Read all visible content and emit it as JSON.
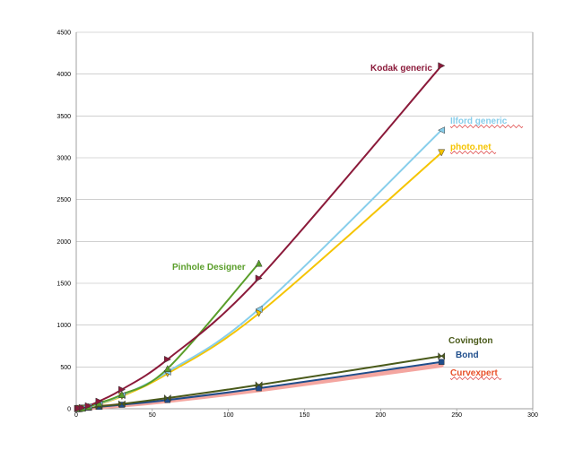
{
  "chart_data": {
    "type": "line",
    "title": "",
    "xlabel": "",
    "ylabel": "",
    "xlim": [
      0,
      300
    ],
    "ylim": [
      0,
      4500
    ],
    "x_ticks": [
      0,
      50,
      100,
      150,
      200,
      250,
      300
    ],
    "y_ticks": [
      0,
      500,
      1000,
      1500,
      2000,
      2500,
      3000,
      3500,
      4000,
      4500
    ],
    "grid": "horizontal",
    "legend": "inline labels",
    "series": [
      {
        "name": "Kodak generic",
        "color": "#8b1a3a",
        "marker": "triangle-right",
        "label_spell_marked": false,
        "points": [
          [
            1,
            2
          ],
          [
            2,
            6
          ],
          [
            4,
            14
          ],
          [
            8,
            35
          ],
          [
            15,
            90
          ],
          [
            30,
            230
          ],
          [
            60,
            590
          ],
          [
            120,
            1560
          ],
          [
            240,
            4100
          ]
        ]
      },
      {
        "name": "Ilford generic",
        "color": "#87ceeb",
        "marker": "triangle-left",
        "label_spell_marked": true,
        "points": [
          [
            1,
            1
          ],
          [
            2,
            3
          ],
          [
            4,
            8
          ],
          [
            8,
            20
          ],
          [
            15,
            60
          ],
          [
            30,
            160
          ],
          [
            60,
            440
          ],
          [
            120,
            1190
          ],
          [
            240,
            3330
          ]
        ]
      },
      {
        "name": "photo.net",
        "color": "#f5c400",
        "marker": "triangle-down",
        "label_spell_marked": true,
        "points": [
          [
            1,
            1
          ],
          [
            2,
            3
          ],
          [
            4,
            7
          ],
          [
            8,
            18
          ],
          [
            15,
            55
          ],
          [
            30,
            150
          ],
          [
            60,
            420
          ],
          [
            120,
            1140
          ],
          [
            240,
            3060
          ]
        ]
      },
      {
        "name": "Pinhole Designer",
        "color": "#5a9e2a",
        "marker": "triangle-up",
        "label_spell_marked": false,
        "points": [
          [
            1,
            1
          ],
          [
            2,
            3
          ],
          [
            4,
            8
          ],
          [
            8,
            25
          ],
          [
            15,
            70
          ],
          [
            30,
            170
          ],
          [
            60,
            480
          ],
          [
            120,
            1740
          ]
        ]
      },
      {
        "name": "Covington",
        "color": "#4a5a1a",
        "marker": "bowtie",
        "label_spell_marked": false,
        "points": [
          [
            1,
            2
          ],
          [
            2,
            4
          ],
          [
            4,
            8
          ],
          [
            8,
            16
          ],
          [
            15,
            30
          ],
          [
            30,
            58
          ],
          [
            60,
            128
          ],
          [
            120,
            285
          ],
          [
            240,
            630
          ]
        ]
      },
      {
        "name": "Bond",
        "color": "#1f4e8c",
        "marker": "square",
        "label_spell_marked": false,
        "points": [
          [
            1,
            1
          ],
          [
            2,
            3
          ],
          [
            4,
            6
          ],
          [
            8,
            12
          ],
          [
            15,
            24
          ],
          [
            30,
            48
          ],
          [
            60,
            105
          ],
          [
            120,
            245
          ],
          [
            240,
            560
          ]
        ]
      },
      {
        "name": "Curvexpert",
        "color": "#f4a6a0",
        "marker": "none",
        "label_spell_marked": true,
        "label_color": "#e8502a",
        "points": [
          [
            1,
            1
          ],
          [
            2,
            2
          ],
          [
            4,
            5
          ],
          [
            8,
            10
          ],
          [
            15,
            20
          ],
          [
            30,
            42
          ],
          [
            60,
            95
          ],
          [
            120,
            225
          ],
          [
            240,
            520
          ]
        ]
      }
    ]
  }
}
